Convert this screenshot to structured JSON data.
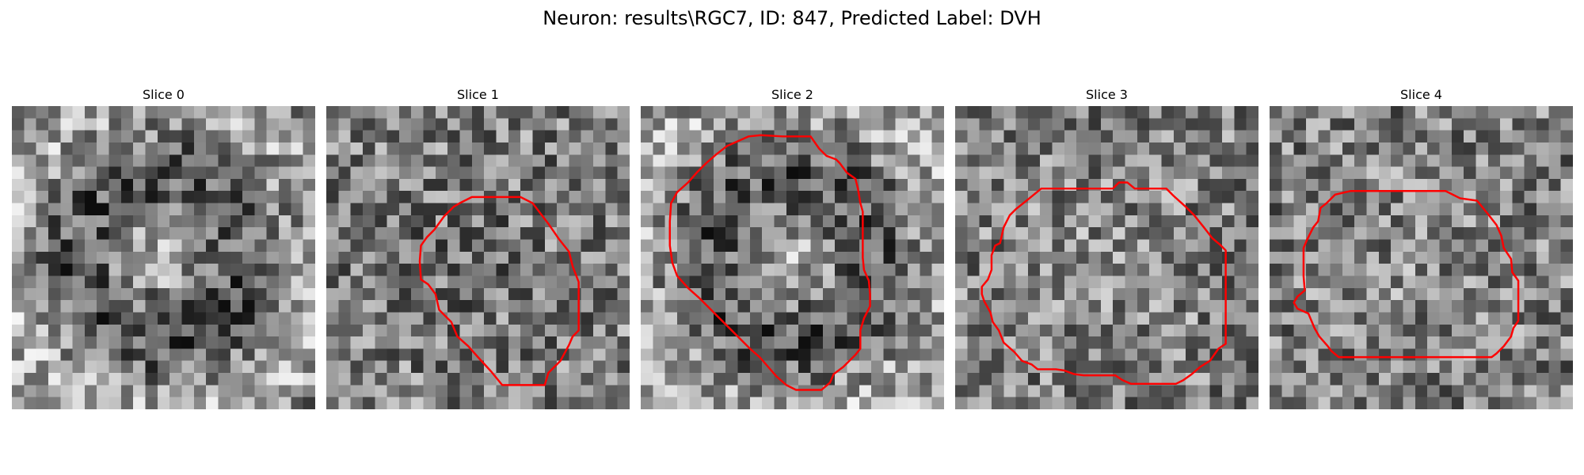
{
  "figure": {
    "suptitle": "Neuron: results\\RGC7, ID: 847, Predicted Label: DVH"
  },
  "panels": [
    {
      "title": "Slice 0",
      "seed": 11,
      "mode": "ring",
      "contour": []
    },
    {
      "title": "Slice 1",
      "seed": 23,
      "mode": "dark",
      "contour": [
        [
          15.5,
          7
        ],
        [
          16.5,
          7.5
        ],
        [
          17.8,
          9.2
        ],
        [
          18.7,
          10.5
        ],
        [
          19.5,
          11.5
        ],
        [
          19.8,
          12.7
        ],
        [
          20.3,
          14
        ],
        [
          20.3,
          16
        ],
        [
          20.3,
          18
        ],
        [
          19.8,
          18.5
        ],
        [
          19.5,
          19.2
        ],
        [
          18.8,
          20.5
        ],
        [
          17.8,
          21.5
        ],
        [
          17.5,
          22.5
        ],
        [
          15.6,
          22.5
        ],
        [
          14,
          22.5
        ],
        [
          13.1,
          21.4
        ],
        [
          12,
          20.2
        ],
        [
          11.2,
          19.3
        ],
        [
          10.3,
          18.5
        ],
        [
          9.8,
          17.3
        ],
        [
          8.8,
          16.3
        ],
        [
          8.5,
          15
        ],
        [
          7.9,
          14.2
        ],
        [
          7.3,
          13.8
        ],
        [
          7.2,
          12.3
        ],
        [
          7.3,
          11
        ],
        [
          7.8,
          10.3
        ],
        [
          8.4,
          9.7
        ],
        [
          9.2,
          8.6
        ],
        [
          10,
          7.8
        ],
        [
          10.5,
          7.5
        ],
        [
          11.5,
          7
        ],
        [
          13,
          7
        ]
      ]
    },
    {
      "title": "Slice 2",
      "seed": 37,
      "mode": "ring",
      "contour": [
        [
          11.2,
          2
        ],
        [
          13.5,
          2
        ],
        [
          14.2,
          3
        ],
        [
          14.8,
          3.6
        ],
        [
          15.6,
          3.9
        ],
        [
          15.9,
          4.2
        ],
        [
          16.5,
          5
        ],
        [
          17.2,
          5.5
        ],
        [
          17.4,
          6.3
        ],
        [
          17.6,
          7.5
        ],
        [
          17.8,
          8.2
        ],
        [
          17.8,
          10
        ],
        [
          17.8,
          12
        ],
        [
          17.9,
          13
        ],
        [
          18.3,
          13.9
        ],
        [
          18.4,
          15
        ],
        [
          18.4,
          16
        ],
        [
          17.9,
          17
        ],
        [
          17.6,
          18
        ],
        [
          17.6,
          19.5
        ],
        [
          17.2,
          20
        ],
        [
          16.6,
          20.6
        ],
        [
          16.2,
          21
        ],
        [
          15.4,
          21.6
        ],
        [
          15.1,
          22.3
        ],
        [
          14.4,
          22.9
        ],
        [
          12.3,
          22.9
        ],
        [
          11.5,
          22.5
        ],
        [
          10.7,
          21.8
        ],
        [
          10,
          21
        ],
        [
          9.3,
          20.2
        ],
        [
          8.5,
          19.5
        ],
        [
          7.7,
          18.7
        ],
        [
          6.9,
          17.9
        ],
        [
          6,
          17
        ],
        [
          5,
          16
        ],
        [
          4.3,
          15.3
        ],
        [
          3.4,
          14.5
        ],
        [
          2.5,
          13.5
        ],
        [
          2.1,
          12.4
        ],
        [
          1.9,
          11
        ],
        [
          1.9,
          9
        ],
        [
          2,
          7.5
        ],
        [
          2.5,
          6.6
        ],
        [
          3.4,
          5.8
        ],
        [
          4.1,
          5
        ],
        [
          4.9,
          4.2
        ],
        [
          5.7,
          3.5
        ],
        [
          6.6,
          2.8
        ],
        [
          7.5,
          2.4
        ],
        [
          8.4,
          2
        ],
        [
          9.4,
          1.9
        ]
      ]
    },
    {
      "title": "Slice 3",
      "seed": 53,
      "mode": "bright",
      "contour": [
        [
          6.6,
          6.3
        ],
        [
          9.7,
          6.3
        ],
        [
          12.5,
          6.3
        ],
        [
          13,
          5.8
        ],
        [
          13.7,
          5.8
        ],
        [
          14.3,
          6.3
        ],
        [
          16.9,
          6.3
        ],
        [
          17.5,
          6.9
        ],
        [
          18.5,
          7.8
        ],
        [
          19.2,
          8.5
        ],
        [
          20,
          9.5
        ],
        [
          20.7,
          10.4
        ],
        [
          21.3,
          10.9
        ],
        [
          21.8,
          11.4
        ],
        [
          21.8,
          13
        ],
        [
          21.8,
          15
        ],
        [
          21.8,
          17
        ],
        [
          21.8,
          19.1
        ],
        [
          21.2,
          19.5
        ],
        [
          20.5,
          20.5
        ],
        [
          19.7,
          21
        ],
        [
          19,
          21.6
        ],
        [
          18.3,
          22.1
        ],
        [
          17.7,
          22.4
        ],
        [
          15.6,
          22.4
        ],
        [
          14,
          22.4
        ],
        [
          13.3,
          22.1
        ],
        [
          12.7,
          21.7
        ],
        [
          10.1,
          21.7
        ],
        [
          9.3,
          21.6
        ],
        [
          8.5,
          21.3
        ],
        [
          7.8,
          21.2
        ],
        [
          6.3,
          21.2
        ],
        [
          5.8,
          20.8
        ],
        [
          5,
          20.5
        ],
        [
          4.4,
          19.8
        ],
        [
          3.5,
          19
        ],
        [
          3.1,
          18
        ],
        [
          2.6,
          17.3
        ],
        [
          2.4,
          16.5
        ],
        [
          1.9,
          15.6
        ],
        [
          1.7,
          15
        ],
        [
          1.7,
          14.4
        ],
        [
          2.2,
          13.8
        ],
        [
          2.5,
          13
        ],
        [
          2.5,
          11.8
        ],
        [
          2.8,
          11
        ],
        [
          3.2,
          10.8
        ],
        [
          3.5,
          9.5
        ],
        [
          4,
          8.5
        ],
        [
          4.5,
          8
        ],
        [
          5.5,
          7.2
        ]
      ]
    },
    {
      "title": "Slice 4",
      "seed": 71,
      "mode": "bright",
      "contour": [
        [
          6.2,
          6.5
        ],
        [
          8.5,
          6.5
        ],
        [
          11,
          6.5
        ],
        [
          12,
          6.5
        ],
        [
          14,
          6.5
        ],
        [
          15.2,
          7.1
        ],
        [
          16.6,
          7.3
        ],
        [
          17.5,
          8.4
        ],
        [
          18.2,
          9.3
        ],
        [
          18.6,
          10.2
        ],
        [
          18.8,
          11.2
        ],
        [
          19.4,
          12.1
        ],
        [
          19.5,
          13.2
        ],
        [
          20,
          13.9
        ],
        [
          20,
          15
        ],
        [
          20,
          16
        ],
        [
          20,
          17.2
        ],
        [
          19.6,
          17.8
        ],
        [
          19.4,
          18.5
        ],
        [
          18.8,
          19.3
        ],
        [
          18.2,
          19.9
        ],
        [
          17.8,
          20.2
        ],
        [
          16.5,
          20.2
        ],
        [
          14,
          20.2
        ],
        [
          11,
          20.2
        ],
        [
          8.5,
          20.2
        ],
        [
          5.2,
          20.2
        ],
        [
          4.6,
          19.7
        ],
        [
          4.3,
          19.3
        ],
        [
          3.6,
          18.5
        ],
        [
          3.2,
          17.8
        ],
        [
          2.7,
          16.6
        ],
        [
          1.8,
          16.2
        ],
        [
          1.5,
          15.7
        ],
        [
          1.8,
          15.2
        ],
        [
          2.4,
          14.7
        ],
        [
          2.3,
          13.5
        ],
        [
          2.3,
          12.5
        ],
        [
          2.3,
          11.2
        ],
        [
          2.6,
          10.5
        ],
        [
          3.1,
          9.5
        ],
        [
          3.5,
          9
        ],
        [
          3.7,
          7.9
        ],
        [
          4.2,
          7.5
        ],
        [
          4.9,
          6.8
        ]
      ]
    }
  ]
}
